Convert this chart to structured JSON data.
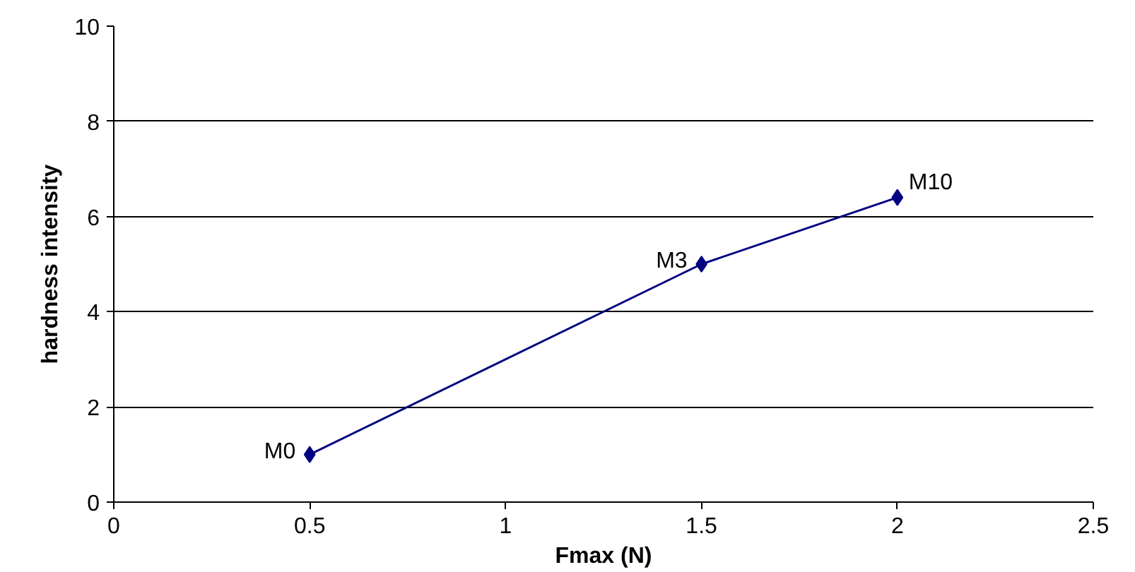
{
  "chart_data": {
    "type": "line",
    "xlabel": "Fmax (N)",
    "ylabel": "hardness intensity",
    "x": [
      0.5,
      1.5,
      2
    ],
    "series": [
      {
        "color": "#000080",
        "values": [
          1,
          5,
          6.4
        ]
      }
    ],
    "xlim": [
      0,
      2.5
    ],
    "xticks": [
      0,
      0.5,
      1,
      {
        "value": 1.5,
        "label": "1.5"
      },
      2,
      2.5
    ],
    "ylim": [
      0,
      10
    ],
    "yticks": [
      0,
      2,
      4,
      6,
      8,
      10
    ],
    "grid": "y",
    "marker": "diamond",
    "line_style": "solid",
    "annotations": [
      {
        "text": "M0",
        "x": 0.5,
        "y": 1
      },
      {
        "text": "M3",
        "x": 1.5,
        "y": 5
      },
      {
        "text": "M10",
        "x": 2,
        "y": 6.4
      }
    ]
  }
}
